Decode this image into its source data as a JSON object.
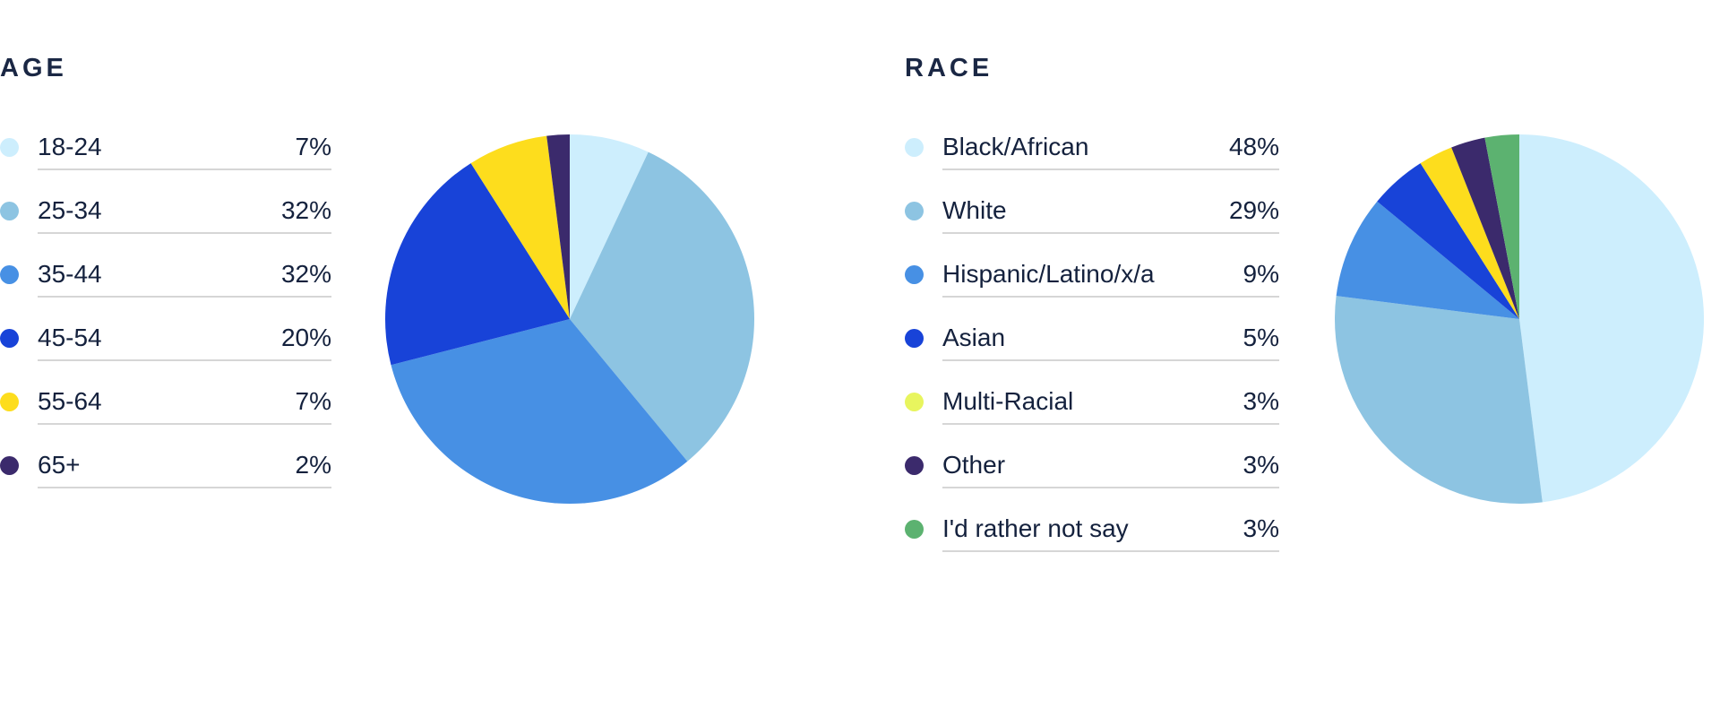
{
  "chart_data": [
    {
      "type": "pie",
      "title": "AGE",
      "categories": [
        "18-24",
        "25-34",
        "35-44",
        "45-54",
        "55-64",
        "65+"
      ],
      "values": [
        7,
        32,
        32,
        20,
        7,
        2
      ],
      "labels": [
        "7%",
        "32%",
        "32%",
        "20%",
        "7%",
        "2%"
      ],
      "colors": [
        "#cdeefd",
        "#8dc4e2",
        "#4790e4",
        "#1843d8",
        "#fddd1d",
        "#3b2a6c"
      ],
      "legend_position": "left"
    },
    {
      "type": "pie",
      "title": "RACE",
      "categories": [
        "Black/African",
        "White",
        "Hispanic/Latino/x/a",
        "Asian",
        "Multi-Racial",
        "Other",
        "I'd rather not say"
      ],
      "values": [
        48,
        29,
        9,
        5,
        3,
        3,
        3
      ],
      "labels": [
        "48%",
        "29%",
        "9%",
        "5%",
        "3%",
        "3%",
        "3%"
      ],
      "colors": [
        "#cdeefd",
        "#8dc4e2",
        "#4790e4",
        "#1843d8",
        "#e8f55e",
        "#3b2a6c",
        "#5cb270"
      ],
      "slice_colors": [
        "#cdeefd",
        "#8dc4e2",
        "#4790e4",
        "#1843d8",
        "#fddd1d",
        "#3b2a6c",
        "#5cb270"
      ],
      "legend_position": "left"
    }
  ]
}
